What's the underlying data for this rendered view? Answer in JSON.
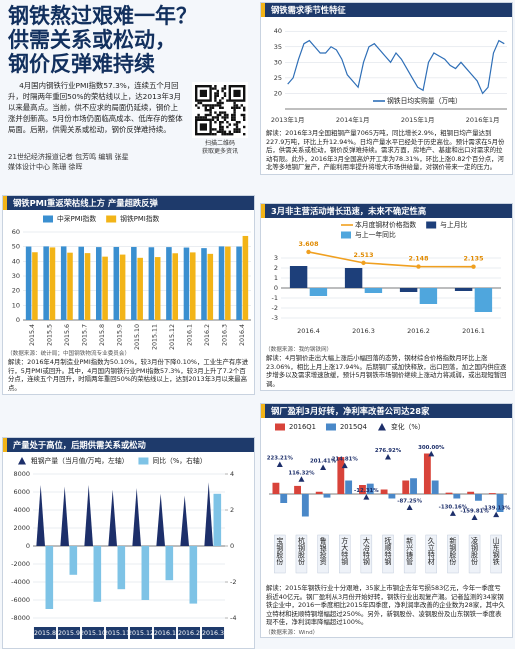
{
  "header": {
    "title_lines": [
      "钢铁熬过艰难一年？",
      "供需关系或松动，",
      "钢价反弹难持续"
    ],
    "intro": "4月国内钢铁行业PMI指数57.3%，连续五个月回升，时隔两年重回50%的荣枯线以上，达2013年3月以来最高点。当前，供不应求的局面仍延续，钢价上涨并创新高。5月份市场仍面临高成本、低库存的整体局面。后期，供需关系或松动，钢价反弹难持续。",
    "qr_caption": [
      "扫描二维码",
      "获取更多资讯"
    ],
    "credits": [
      "21世纪经济报道记者 包芳鸣  编辑 张星",
      "媒体设计中心 陈珊 徐晖"
    ]
  },
  "chart_data": [
    {
      "type": "line",
      "title": "钢铁需求季节性特征",
      "categories": [
        "2013年1月",
        null,
        null,
        null,
        null,
        null,
        null,
        null,
        null,
        null,
        null,
        null,
        "2014年1月",
        null,
        null,
        null,
        null,
        null,
        null,
        null,
        null,
        null,
        null,
        null,
        "2015年1月",
        null,
        null,
        null,
        null,
        null,
        null,
        null,
        null,
        null,
        null,
        null,
        "2016年1月",
        null,
        null,
        null,
        null
      ],
      "series": [
        {
          "name": "钢铁日均实购量（万吨）",
          "color": "#2f6fb7",
          "style": "line",
          "values": [
            23,
            25,
            31,
            36,
            37,
            35,
            33,
            33,
            35,
            34,
            31,
            26,
            24,
            22,
            30,
            35,
            36,
            34,
            32,
            30,
            33,
            31,
            28,
            25,
            22,
            21,
            30,
            33,
            32,
            31,
            29,
            28,
            30,
            28,
            26,
            24,
            20,
            22,
            33,
            37,
            36
          ]
        }
      ],
      "ylim": [
        15,
        42
      ],
      "yticks": [
        20,
        25,
        30,
        35,
        40
      ],
      "grid": true,
      "note": "解读：2016年3月全国粗钢产量7065万吨，同比增长2.9%，粗钢日均产量达到227.9万吨，环比上升12.94%。日均产量水平已经处于历史高位。预计需求在5月份后，供需关系或松动，钢价反弹难持续。需求方面，房地产、基建和出口对需求的拉动有限。此外，2016年3月全国高炉开工率为78.31%，环比上涨0.82个百分点，河北等多地钢厂复产，产能利用率提升将增大市场供给量，对钢价带来一定的压力。"
    },
    {
      "type": "bar",
      "title": "钢铁PMI重返荣枯线上方 产量超跌反弹",
      "categories": [
        "2015.4",
        "2015.5",
        "2015.6",
        "2015.7",
        "2015.8",
        "2015.9",
        "2015.10",
        "2015.11",
        "2015.12",
        "2016.1",
        "2016.2",
        "2016.3",
        "2016.4"
      ],
      "series": [
        {
          "name": "中采PMI指数",
          "color": "#3a8fd0",
          "style": "bar",
          "values": [
            50.1,
            50.2,
            50.2,
            50.0,
            49.7,
            49.8,
            49.8,
            49.6,
            49.7,
            49.4,
            49.0,
            50.2,
            50.1
          ]
        },
        {
          "name": "钢铁PMI指数",
          "color": "#f2b418",
          "style": "bar",
          "values": [
            46.2,
            49.5,
            45.9,
            45.6,
            43.2,
            44.6,
            42.4,
            42.9,
            45.5,
            46.1,
            45.1,
            50.1,
            57.3
          ]
        }
      ],
      "ylim": [
        0,
        60
      ],
      "yticks": [
        0,
        10,
        20,
        30,
        40,
        50,
        60
      ],
      "grid": true,
      "source": "（数据来源：统计局；中国钢铁物流专业委员会）",
      "note": "解读：2016年4月制造业PMI指数为50.10%，较3月份下降0.10%，工业生产有序进行，5月PMI或回升。其中，4月国内钢铁行业PMI指数57.3%，较3月上升了7.2个百分点，连续五个月回升，时隔两年重回50%的荣枯线以上，达到2013年3月以来最高点。"
    },
    {
      "type": "combo",
      "title": "3月非主营活动增长迅速，未来不确定性高",
      "categories": [
        "2016.4",
        "2016.3",
        "2016.2",
        "2016.1"
      ],
      "series": [
        {
          "name": "本月度钢材价格指数",
          "color": "#f0a020",
          "style": "line",
          "data_labels": true,
          "values": [
            3.608,
            2.513,
            2.148,
            2.135
          ]
        },
        {
          "name": "与上月比",
          "color": "#1d3f7a",
          "style": "bar",
          "values": [
            2.2,
            2.0,
            -0.4,
            -0.3
          ]
        },
        {
          "name": "与上一年同比",
          "color": "#4fa6dd",
          "style": "bar",
          "values": [
            -0.8,
            -0.5,
            -1.6,
            -2.4
          ]
        }
      ],
      "ylim": [
        -3,
        4
      ],
      "yticks": [
        -3,
        -2,
        -1,
        0,
        1,
        2,
        3
      ],
      "grid": true,
      "source": "（数据来源：我的钢铁网）",
      "note": "解读：4月钢价走出大幅上涨后小幅回落的态势，钢材综合价格指数月环比上涨23.06%，相比上月上涨17.94%。后期钢厂或加快释放，出口回落，加之国内供应逐步增多以及需求增速放缓，预计5月钢铁市场钢价继续上涨动力将减弱，或出现短暂回调。"
    },
    {
      "type": "combo",
      "title": "产量处于高位，后期供需关系或松动",
      "categories": [
        "2015.8",
        "2015.9",
        "2015.10",
        "2015.11",
        "2015.12",
        "2016.1",
        "2016.2",
        "2016.3"
      ],
      "series": [
        {
          "name": "粗钢产量（当月值/万吨，左轴）",
          "color": "#1d2f6a",
          "style": "triangle_bar",
          "values": [
            6776,
            6617,
            6781,
            6252,
            6443,
            5800,
            5600,
            7065
          ]
        },
        {
          "name": "同比（%，右轴）",
          "color": "#7ec3e6",
          "style": "bar",
          "axis": "y2",
          "values": [
            -3.5,
            -1.6,
            -3.1,
            -2.4,
            -3.0,
            -1.9,
            -3.2,
            2.9
          ]
        }
      ],
      "ylim": [
        -8000,
        8000
      ],
      "yticks": [
        -8000,
        -6000,
        -4000,
        -2000,
        0,
        2000,
        4000,
        6000,
        8000
      ],
      "y2lim": [
        -4,
        4
      ],
      "y2ticks": [
        -4,
        -2,
        0,
        2,
        4
      ],
      "grid": true
    },
    {
      "type": "combo",
      "title": "钢厂盈利3月好转，净利率改善公司达28家",
      "categories": [
        "宝钢股份",
        "杭钢股份",
        "鲁银投资",
        "方大特钢",
        "大冶特钢",
        "抚顺特钢",
        "新兴铸管",
        "久立特材",
        "新钢股份",
        "凌钢股份",
        "山东钢铁"
      ],
      "series": [
        {
          "name": "2016Q1",
          "color": "#d8433a",
          "style": "bar",
          "values": [
            2.5,
            1.8,
            0.5,
            8.2,
            2.0,
            1.0,
            3.0,
            9.0,
            0.3,
            0.5,
            0.2
          ]
        },
        {
          "name": "2015Q4",
          "color": "#4a88c8",
          "style": "bar",
          "values": [
            -2.0,
            -5.0,
            -0.8,
            3.0,
            2.3,
            -1.0,
            3.5,
            3.0,
            -1.0,
            -1.5,
            -4.0
          ]
        },
        {
          "name": "变化（%）",
          "color": "#1d2f6a",
          "style": "triangle_marker",
          "axis": "y2",
          "values": [
            223.21,
            116.32,
            201.41,
            214.81,
            -12.31,
            276.92,
            -87.25,
            300.0,
            -130.16,
            -159.81,
            -139.13
          ],
          "value_labels": [
            "223.21%",
            "116.32%",
            "201.41%",
            "214.81%",
            "-12.31%",
            "276.92%",
            "-87.25%",
            "300.00%",
            "-130.16%",
            "-159.81%",
            "-139.13%"
          ]
        }
      ],
      "ylim": [
        -8,
        12
      ],
      "y2lim": [
        -250,
        400
      ],
      "note": "解读：2015年钢铁行业十分艰难，35家上市钢企去年亏损583亿元，今年一季度亏损近40亿元。钢厂盈利从3月份开始好转，钢铁行业出现复产潮。记者监测的34家钢铁企业中，2016一季度相比2015年四季度，净利润率改善的企业数为28家，其中久立特材和抚顺特钢增幅超过250%。另外，新钢股份、凌钢股份及山东钢铁一季度表现不佳，净利润率降幅超过100%。",
      "source": "（数据来源：Wind）"
    }
  ]
}
